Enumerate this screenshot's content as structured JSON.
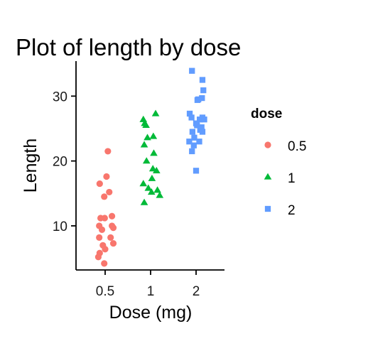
{
  "chart_data": {
    "type": "scatter",
    "title": "Plot of length  by dose",
    "xlabel": "Dose (mg)",
    "ylabel": "Length",
    "categories": [
      "0.5",
      "1",
      "2"
    ],
    "y_ticks": [
      10,
      20,
      30
    ],
    "ylim": [
      3.2,
      35.4
    ],
    "grid": false,
    "legend": {
      "title": "dose",
      "placement": "right"
    },
    "series": [
      {
        "name": "0.5",
        "category": "0.5",
        "shape": "circle",
        "color": "#F8766D",
        "points": [
          {
            "jitter": 0.06,
            "y": 21.5
          },
          {
            "jitter": 0.03,
            "y": 17.6
          },
          {
            "jitter": -0.12,
            "y": 16.5
          },
          {
            "jitter": 0.09,
            "y": 15.2
          },
          {
            "jitter": -0.02,
            "y": 14.5
          },
          {
            "jitter": -0.1,
            "y": 11.2
          },
          {
            "jitter": -0.01,
            "y": 11.2
          },
          {
            "jitter": 0.15,
            "y": 11.5
          },
          {
            "jitter": -0.13,
            "y": 10.0
          },
          {
            "jitter": 0.15,
            "y": 10.0
          },
          {
            "jitter": 0.18,
            "y": 9.7
          },
          {
            "jitter": -0.07,
            "y": 9.4
          },
          {
            "jitter": -0.13,
            "y": 8.2
          },
          {
            "jitter": 0.12,
            "y": 8.2
          },
          {
            "jitter": 0.18,
            "y": 7.3
          },
          {
            "jitter": -0.05,
            "y": 7.0
          },
          {
            "jitter": 0.0,
            "y": 6.4
          },
          {
            "jitter": -0.12,
            "y": 5.8
          },
          {
            "jitter": -0.15,
            "y": 5.2
          },
          {
            "jitter": -0.02,
            "y": 4.2
          }
        ]
      },
      {
        "name": "1",
        "category": "1",
        "shape": "triangle",
        "color": "#00BA38",
        "points": [
          {
            "jitter": 0.11,
            "y": 27.3
          },
          {
            "jitter": -0.16,
            "y": 26.4
          },
          {
            "jitter": -0.13,
            "y": 25.8
          },
          {
            "jitter": -0.1,
            "y": 25.5
          },
          {
            "jitter": 0.06,
            "y": 23.8
          },
          {
            "jitter": -0.07,
            "y": 23.6
          },
          {
            "jitter": -0.14,
            "y": 22.5
          },
          {
            "jitter": 0.07,
            "y": 21.2
          },
          {
            "jitter": -0.09,
            "y": 20.0
          },
          {
            "jitter": 0.05,
            "y": 18.8
          },
          {
            "jitter": 0.13,
            "y": 18.5
          },
          {
            "jitter": 0.03,
            "y": 17.3
          },
          {
            "jitter": -0.16,
            "y": 16.5
          },
          {
            "jitter": -0.05,
            "y": 15.8
          },
          {
            "jitter": 0.15,
            "y": 15.5
          },
          {
            "jitter": 0.02,
            "y": 15.2
          },
          {
            "jitter": 0.2,
            "y": 14.7
          },
          {
            "jitter": -0.14,
            "y": 13.6
          }
        ]
      },
      {
        "name": "2",
        "category": "2",
        "shape": "square",
        "color": "#619CFF",
        "points": [
          {
            "jitter": -0.09,
            "y": 33.9
          },
          {
            "jitter": 0.14,
            "y": 32.5
          },
          {
            "jitter": 0.16,
            "y": 30.9
          },
          {
            "jitter": 0.13,
            "y": 29.7
          },
          {
            "jitter": 0.05,
            "y": 29.5
          },
          {
            "jitter": 0.03,
            "y": 29.4
          },
          {
            "jitter": -0.14,
            "y": 27.3
          },
          {
            "jitter": -0.1,
            "y": 26.7
          },
          {
            "jitter": 0.14,
            "y": 26.7
          },
          {
            "jitter": 0.08,
            "y": 26.4
          },
          {
            "jitter": 0.18,
            "y": 26.4
          },
          {
            "jitter": 0.0,
            "y": 25.8
          },
          {
            "jitter": 0.02,
            "y": 25.5
          },
          {
            "jitter": 0.12,
            "y": 25.2
          },
          {
            "jitter": -0.08,
            "y": 24.5
          },
          {
            "jitter": 0.09,
            "y": 24.8
          },
          {
            "jitter": 0.14,
            "y": 24.5
          },
          {
            "jitter": -0.04,
            "y": 23.6
          },
          {
            "jitter": -0.15,
            "y": 23.0
          },
          {
            "jitter": 0.07,
            "y": 23.0
          },
          {
            "jitter": -0.05,
            "y": 22.4
          },
          {
            "jitter": -0.09,
            "y": 21.5
          },
          {
            "jitter": 0.0,
            "y": 18.5
          }
        ]
      }
    ]
  }
}
